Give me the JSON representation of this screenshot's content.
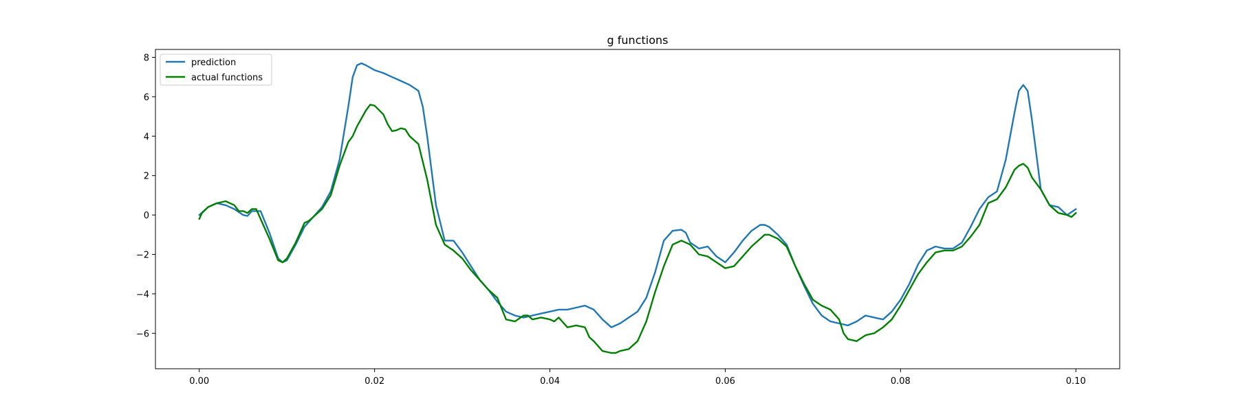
{
  "chart_data": {
    "type": "line",
    "title": "g functions",
    "xlabel": "",
    "ylabel": "",
    "xlim": [
      -0.005,
      0.105
    ],
    "ylim": [
      -7.8,
      8.4
    ],
    "xticks": [
      0.0,
      0.02,
      0.04,
      0.06,
      0.08,
      0.1
    ],
    "xtick_labels": [
      "0.00",
      "0.02",
      "0.04",
      "0.06",
      "0.08",
      "0.10"
    ],
    "yticks": [
      -6,
      -4,
      -2,
      0,
      2,
      4,
      6,
      8
    ],
    "ytick_labels": [
      "−6",
      "−4",
      "−2",
      "0",
      "2",
      "4",
      "6",
      "8"
    ],
    "grid": false,
    "legend_position": "upper-left",
    "series": [
      {
        "name": "prediction",
        "color": "#1f77b4",
        "x": [
          0.0,
          0.001,
          0.002,
          0.003,
          0.004,
          0.005,
          0.0055,
          0.006,
          0.007,
          0.008,
          0.009,
          0.0095,
          0.01,
          0.011,
          0.012,
          0.013,
          0.014,
          0.015,
          0.016,
          0.017,
          0.0175,
          0.018,
          0.0185,
          0.019,
          0.02,
          0.021,
          0.022,
          0.023,
          0.024,
          0.025,
          0.0255,
          0.026,
          0.027,
          0.028,
          0.029,
          0.03,
          0.031,
          0.032,
          0.033,
          0.034,
          0.035,
          0.036,
          0.037,
          0.038,
          0.039,
          0.04,
          0.041,
          0.042,
          0.043,
          0.044,
          0.045,
          0.046,
          0.047,
          0.0475,
          0.048,
          0.049,
          0.05,
          0.051,
          0.052,
          0.053,
          0.054,
          0.055,
          0.0555,
          0.056,
          0.057,
          0.058,
          0.059,
          0.06,
          0.061,
          0.062,
          0.063,
          0.064,
          0.0645,
          0.065,
          0.066,
          0.067,
          0.068,
          0.069,
          0.07,
          0.071,
          0.072,
          0.073,
          0.074,
          0.075,
          0.076,
          0.077,
          0.078,
          0.079,
          0.08,
          0.081,
          0.082,
          0.083,
          0.084,
          0.085,
          0.086,
          0.087,
          0.088,
          0.089,
          0.09,
          0.091,
          0.092,
          0.093,
          0.0935,
          0.094,
          0.0945,
          0.095,
          0.096,
          0.097,
          0.098,
          0.099,
          0.1
        ],
        "y": [
          0.0,
          0.4,
          0.6,
          0.5,
          0.3,
          0.0,
          -0.05,
          0.2,
          0.2,
          -0.9,
          -2.2,
          -2.4,
          -2.3,
          -1.5,
          -0.6,
          -0.1,
          0.4,
          1.2,
          2.8,
          5.5,
          7.0,
          7.6,
          7.7,
          7.6,
          7.35,
          7.2,
          7.0,
          6.8,
          6.6,
          6.3,
          5.5,
          4.0,
          0.5,
          -1.3,
          -1.3,
          -1.9,
          -2.6,
          -3.3,
          -3.8,
          -4.4,
          -4.9,
          -5.1,
          -5.2,
          -5.1,
          -5.0,
          -4.9,
          -4.8,
          -4.8,
          -4.7,
          -4.6,
          -4.8,
          -5.3,
          -5.7,
          -5.6,
          -5.5,
          -5.2,
          -4.9,
          -4.2,
          -2.9,
          -1.3,
          -0.8,
          -0.75,
          -0.9,
          -1.4,
          -1.7,
          -1.6,
          -2.1,
          -2.4,
          -1.9,
          -1.3,
          -0.8,
          -0.5,
          -0.5,
          -0.6,
          -1.0,
          -1.5,
          -2.6,
          -3.6,
          -4.5,
          -5.1,
          -5.4,
          -5.5,
          -5.6,
          -5.4,
          -5.1,
          -5.2,
          -5.3,
          -4.9,
          -4.3,
          -3.5,
          -2.5,
          -1.8,
          -1.6,
          -1.7,
          -1.7,
          -1.4,
          -0.6,
          0.3,
          0.9,
          1.2,
          2.8,
          5.2,
          6.3,
          6.6,
          6.3,
          4.8,
          1.3,
          0.5,
          0.4,
          0.0,
          0.3
        ]
      },
      {
        "name": "actual functions",
        "color": "#008000",
        "x": [
          0.0,
          0.0003,
          0.001,
          0.002,
          0.0025,
          0.003,
          0.004,
          0.0045,
          0.005,
          0.0055,
          0.006,
          0.0065,
          0.007,
          0.008,
          0.009,
          0.0095,
          0.01,
          0.011,
          0.012,
          0.0125,
          0.013,
          0.014,
          0.015,
          0.016,
          0.017,
          0.0175,
          0.018,
          0.0185,
          0.019,
          0.0195,
          0.02,
          0.021,
          0.0215,
          0.022,
          0.0225,
          0.023,
          0.0235,
          0.024,
          0.025,
          0.026,
          0.027,
          0.028,
          0.029,
          0.03,
          0.031,
          0.032,
          0.033,
          0.034,
          0.035,
          0.036,
          0.037,
          0.0375,
          0.038,
          0.039,
          0.04,
          0.0405,
          0.041,
          0.042,
          0.043,
          0.044,
          0.0445,
          0.045,
          0.046,
          0.047,
          0.0475,
          0.048,
          0.049,
          0.05,
          0.051,
          0.052,
          0.053,
          0.054,
          0.055,
          0.0555,
          0.056,
          0.057,
          0.058,
          0.059,
          0.06,
          0.061,
          0.062,
          0.063,
          0.064,
          0.0645,
          0.065,
          0.066,
          0.067,
          0.068,
          0.069,
          0.07,
          0.071,
          0.072,
          0.073,
          0.0735,
          0.074,
          0.075,
          0.076,
          0.077,
          0.078,
          0.079,
          0.08,
          0.081,
          0.082,
          0.083,
          0.084,
          0.085,
          0.086,
          0.087,
          0.088,
          0.089,
          0.09,
          0.091,
          0.092,
          0.093,
          0.0935,
          0.094,
          0.0945,
          0.095,
          0.096,
          0.097,
          0.098,
          0.099,
          0.0995,
          0.1
        ],
        "y": [
          -0.2,
          0.1,
          0.4,
          0.6,
          0.65,
          0.7,
          0.5,
          0.2,
          0.2,
          0.1,
          0.3,
          0.3,
          -0.2,
          -1.2,
          -2.3,
          -2.4,
          -2.2,
          -1.4,
          -0.4,
          -0.3,
          -0.1,
          0.3,
          1.0,
          2.5,
          3.7,
          4.0,
          4.5,
          4.9,
          5.3,
          5.6,
          5.55,
          5.1,
          4.6,
          4.25,
          4.3,
          4.4,
          4.35,
          4.0,
          3.6,
          1.8,
          -0.5,
          -1.5,
          -1.8,
          -2.2,
          -2.8,
          -3.3,
          -3.8,
          -4.2,
          -5.3,
          -5.4,
          -5.1,
          -5.1,
          -5.3,
          -5.2,
          -5.3,
          -5.4,
          -5.2,
          -5.7,
          -5.6,
          -5.7,
          -6.2,
          -6.4,
          -6.9,
          -7.0,
          -7.0,
          -6.9,
          -6.8,
          -6.4,
          -5.4,
          -3.9,
          -2.6,
          -1.5,
          -1.3,
          -1.4,
          -1.5,
          -2.0,
          -2.1,
          -2.4,
          -2.7,
          -2.6,
          -2.1,
          -1.6,
          -1.2,
          -1.0,
          -1.0,
          -1.2,
          -1.6,
          -2.6,
          -3.5,
          -4.3,
          -4.6,
          -4.8,
          -5.3,
          -6.0,
          -6.3,
          -6.4,
          -6.1,
          -6.0,
          -5.7,
          -5.3,
          -4.6,
          -3.8,
          -3.0,
          -2.4,
          -1.9,
          -1.8,
          -1.8,
          -1.6,
          -1.1,
          -0.5,
          0.6,
          0.8,
          1.4,
          2.3,
          2.5,
          2.6,
          2.4,
          1.9,
          1.3,
          0.5,
          0.1,
          0.0,
          -0.1,
          0.1
        ]
      }
    ]
  }
}
